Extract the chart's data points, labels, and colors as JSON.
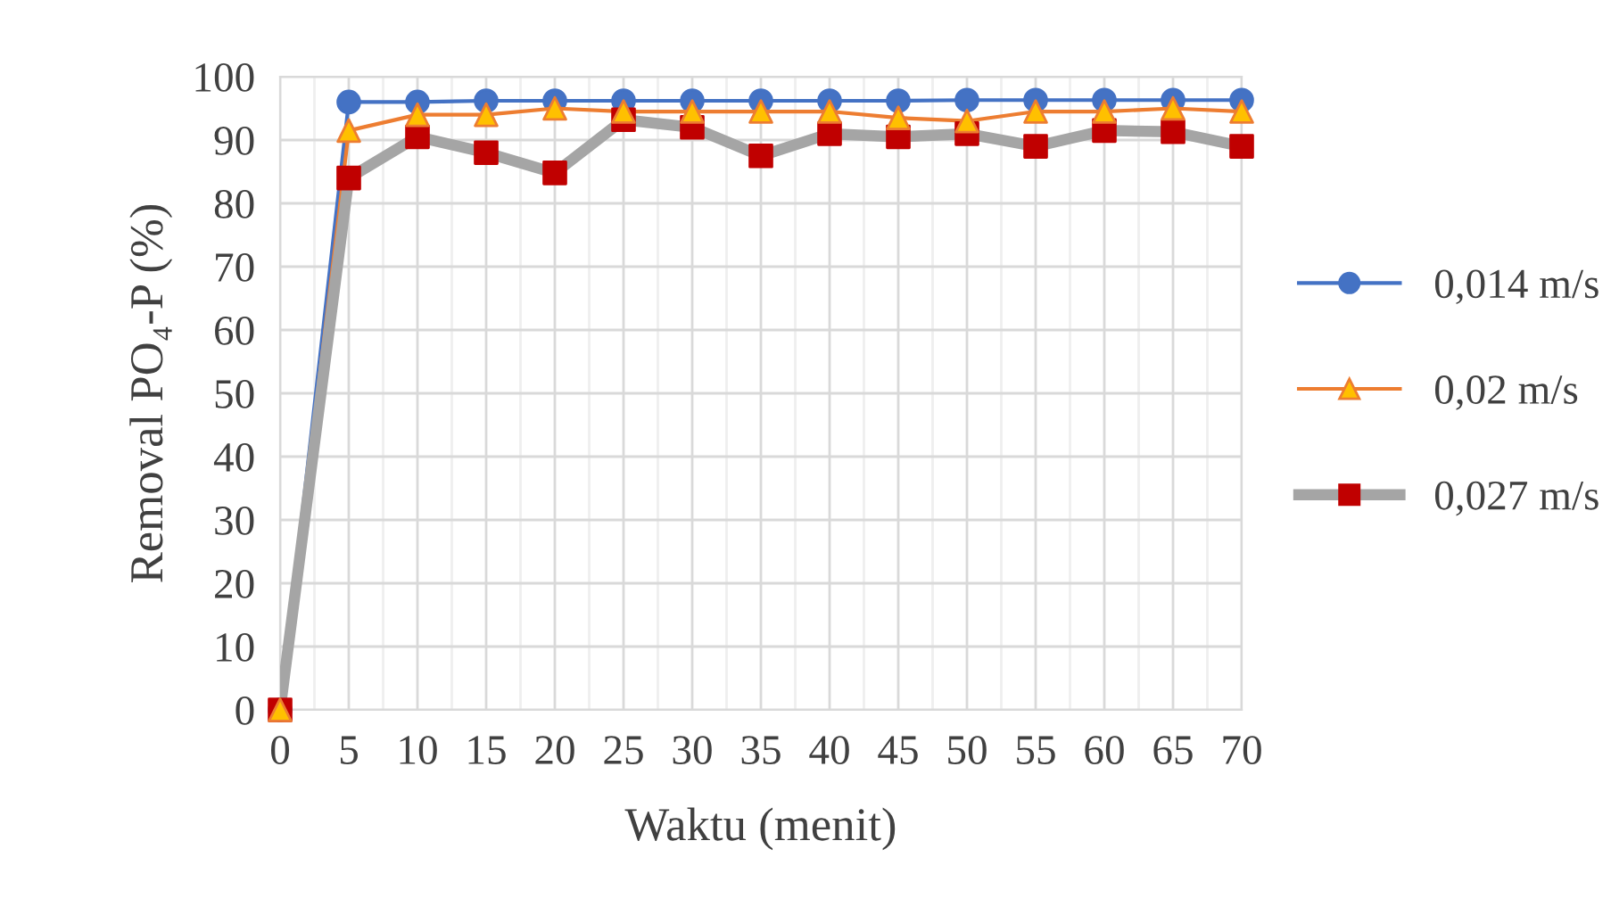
{
  "chart_data": {
    "type": "line",
    "xlabel": "Waktu (menit)",
    "ylabel": "Removal PO₄-P (%)",
    "x": [
      0,
      5,
      10,
      15,
      20,
      25,
      30,
      35,
      40,
      45,
      50,
      55,
      60,
      65,
      70
    ],
    "xlim": [
      0,
      70
    ],
    "xticks": [
      0,
      5,
      10,
      15,
      20,
      25,
      30,
      35,
      40,
      45,
      50,
      55,
      60,
      65,
      70
    ],
    "ylim": [
      0,
      100
    ],
    "yticks": [
      0,
      10,
      20,
      30,
      40,
      50,
      60,
      70,
      80,
      90,
      100
    ],
    "grid": true,
    "legend": "right",
    "series": [
      {
        "name": "0,014 m/s",
        "color": "#4472c4",
        "marker": "circle",
        "colors": [
          "#4472c4",
          "#4472c4",
          "#4472c4",
          "#4472c4",
          "#4472c4",
          "#4472c4",
          "#4472c4",
          "#4472c4",
          "#4472c4",
          "#4472c4",
          "#4472c4",
          "#4472c4",
          "#4472c4",
          "#4472c4",
          "#4472c4"
        ],
        "values": [
          0,
          96,
          96,
          96.2,
          96.2,
          96.2,
          96.2,
          96.2,
          96.2,
          96.2,
          96.3,
          96.3,
          96.3,
          96.3,
          96.3
        ]
      },
      {
        "name": "0,02 m/s",
        "color": "#ed7d31",
        "marker": "triangle",
        "colors": [
          "#ffc000",
          "#ffc000",
          "#ffc000",
          "#ffc000",
          "#ffc000",
          "#ffc000",
          "#ffc000",
          "#ffc000",
          "#ffc000",
          "#ffc000",
          "#ffc000",
          "#ffc000",
          "#ffc000",
          "#ffc000",
          "#ffc000"
        ],
        "values": [
          0,
          91.5,
          94,
          94,
          95,
          94.5,
          94.5,
          94.5,
          94.5,
          93.5,
          93,
          94.5,
          94.5,
          95,
          94.5
        ]
      },
      {
        "name": "0,027 m/s",
        "color": "#a5a5a5",
        "marker": "square",
        "colors": [
          "#c00000",
          "#c00000",
          "#c00000",
          "#c00000",
          "#c00000",
          "#c00000",
          "#c00000",
          "#c00000",
          "#c00000",
          "#c00000",
          "#c00000",
          "#c00000",
          "#c00000",
          "#c00000",
          "#c00000"
        ],
        "values": [
          0,
          84,
          90.5,
          88,
          84.8,
          93.2,
          92,
          87.5,
          91,
          90.5,
          91,
          89,
          91.5,
          91.3,
          89
        ]
      }
    ]
  }
}
